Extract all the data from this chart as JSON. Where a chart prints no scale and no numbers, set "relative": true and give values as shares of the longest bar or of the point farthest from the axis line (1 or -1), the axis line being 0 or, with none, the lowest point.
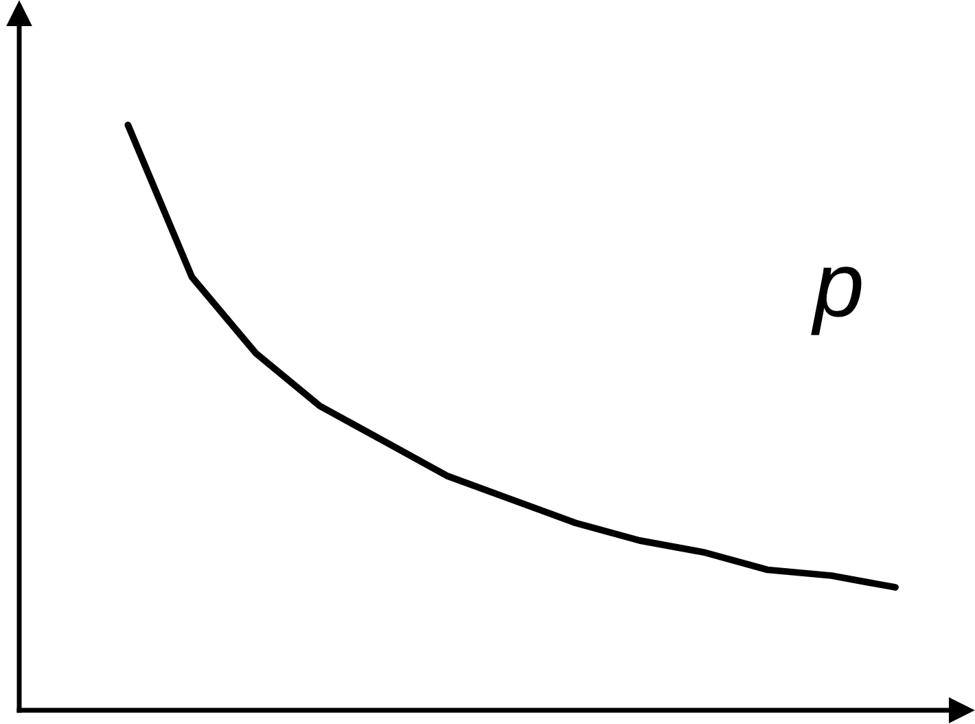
{
  "chart_data": {
    "type": "line",
    "relative": true,
    "categories": [
      null,
      null,
      null,
      null,
      null,
      null,
      null,
      null,
      null,
      null,
      null,
      null,
      null
    ],
    "series": [
      {
        "color": "#000000",
        "values": [
          1,
          0.74,
          0.61,
          0.52,
          0.46,
          0.4,
          0.36,
          0.32,
          0.29,
          0.27,
          0.24,
          0.23,
          0.21
        ]
      }
    ],
    "annotations": [
      "p"
    ],
    "marker": "none",
    "line_style": "solid",
    "legend": false
  }
}
